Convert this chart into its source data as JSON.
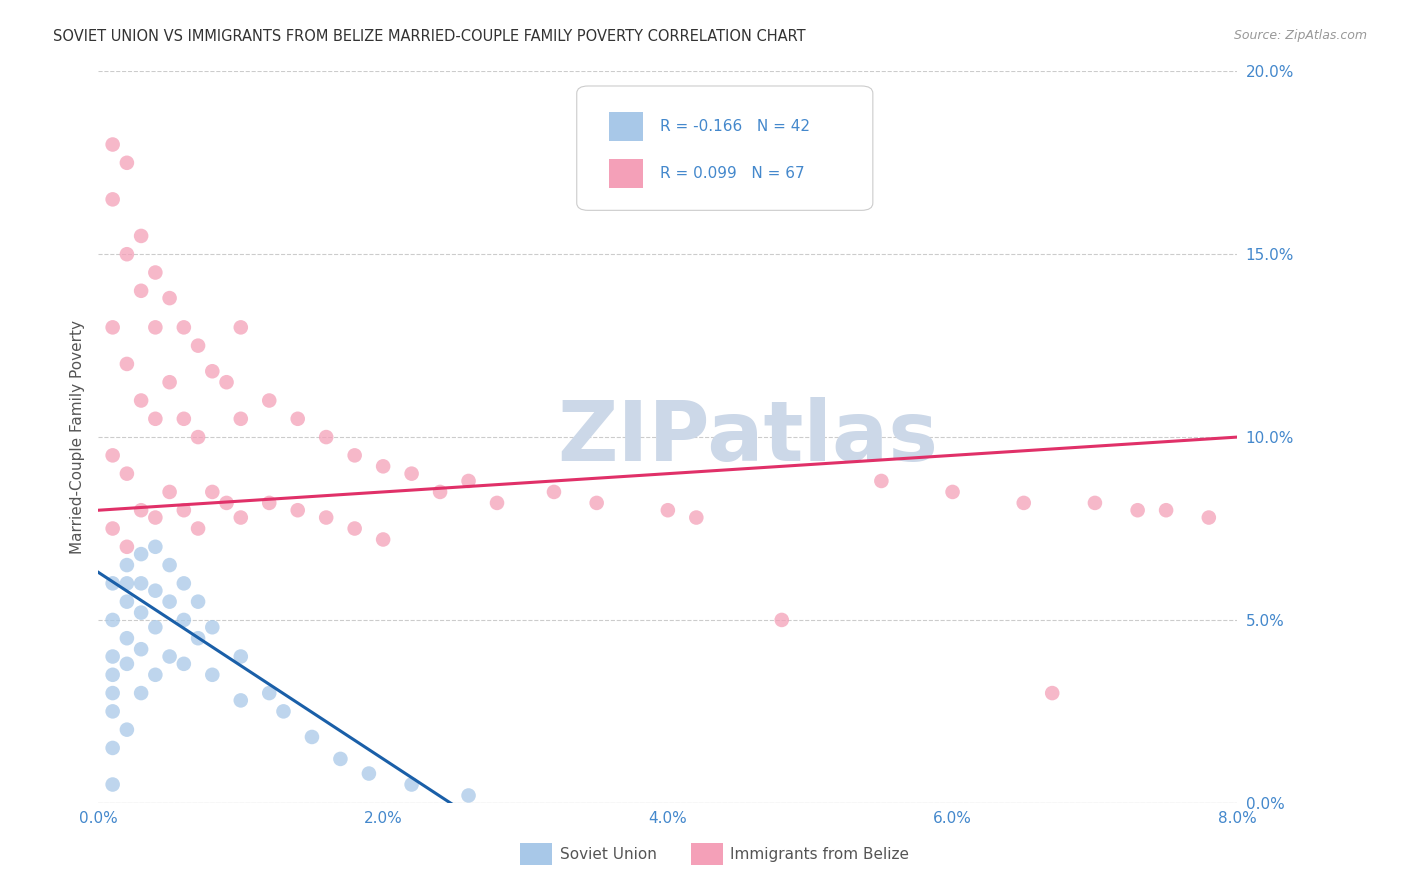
{
  "title": "SOVIET UNION VS IMMIGRANTS FROM BELIZE MARRIED-COUPLE FAMILY POVERTY CORRELATION CHART",
  "source": "Source: ZipAtlas.com",
  "ylabel": "Married-Couple Family Poverty",
  "xlim": [
    0.0,
    0.08
  ],
  "ylim": [
    0.0,
    0.2
  ],
  "soviet_R": -0.166,
  "soviet_N": 42,
  "belize_R": 0.099,
  "belize_N": 67,
  "soviet_color": "#a8c8e8",
  "belize_color": "#f4a0b8",
  "soviet_line_color": "#1a5fa8",
  "belize_line_color": "#e03068",
  "watermark_color": "#ccd8e8",
  "tick_color": "#4488cc",
  "background_color": "#ffffff",
  "grid_color": "#cccccc",
  "watermark_text": "ZIPatlas",
  "legend_box_color": "#ffffff",
  "legend_border_color": "#cccccc",
  "ylabel_color": "#555555",
  "bottom_legend_color": "#555555"
}
